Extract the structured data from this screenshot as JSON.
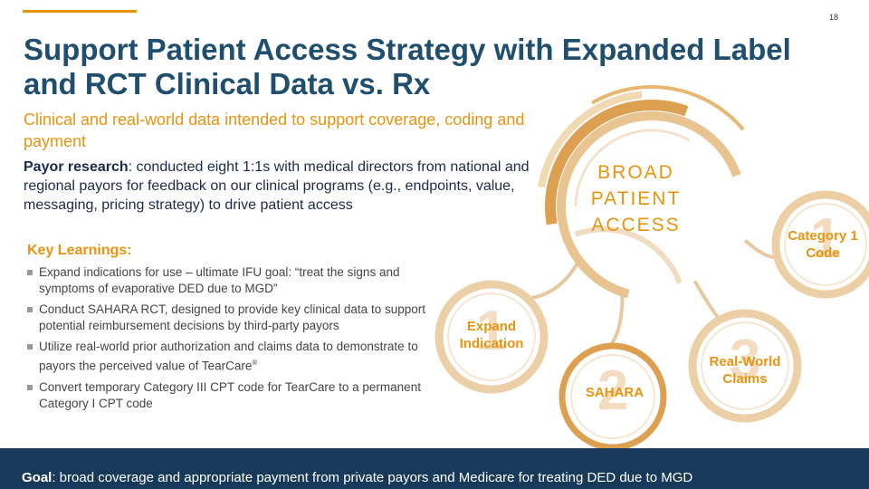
{
  "header": {
    "page_number": "18",
    "title": "Support Patient Access Strategy with Expanded Label and RCT Clinical Data vs. Rx",
    "subtitle": "Clinical and real-world data intended to support coverage, coding and payment"
  },
  "payor": {
    "bold": "Payor research",
    "text": ": conducted eight 1:1s with medical directors from national and regional payors for feedback on our clinical programs (e.g., endpoints, value, messaging, pricing strategy) to drive patient access"
  },
  "key_learnings": {
    "heading": "Key Learnings:",
    "items": [
      {
        "text": "Expand indications for use – ultimate IFU goal: “treat the signs and symptoms of evaporative DED due to MGD”"
      },
      {
        "text": "Conduct SAHARA RCT, designed to provide key clinical data to support potential reimbursement decisions by   third-party payors"
      },
      {
        "text": "Utilize real-world prior authorization and claims data to demonstrate to payors the perceived value of TearCare",
        "sup": "®"
      },
      {
        "text": "Convert temporary Category III CPT code for TearCare to a permanent Category I CPT code"
      }
    ]
  },
  "diagram": {
    "center": "BROAD PATIENT ACCESS",
    "nodes": [
      {
        "number": "1",
        "label": "Expand Indication"
      },
      {
        "number": "2",
        "label": "SAHARA"
      },
      {
        "number": "3",
        "label": "Real-World Claims"
      },
      {
        "number": "1",
        "label": "Category 1 Code"
      }
    ]
  },
  "footer": {
    "bold": "Goal",
    "text": ": broad coverage and appropriate payment from private payors and Medicare for treating DED due to MGD"
  }
}
